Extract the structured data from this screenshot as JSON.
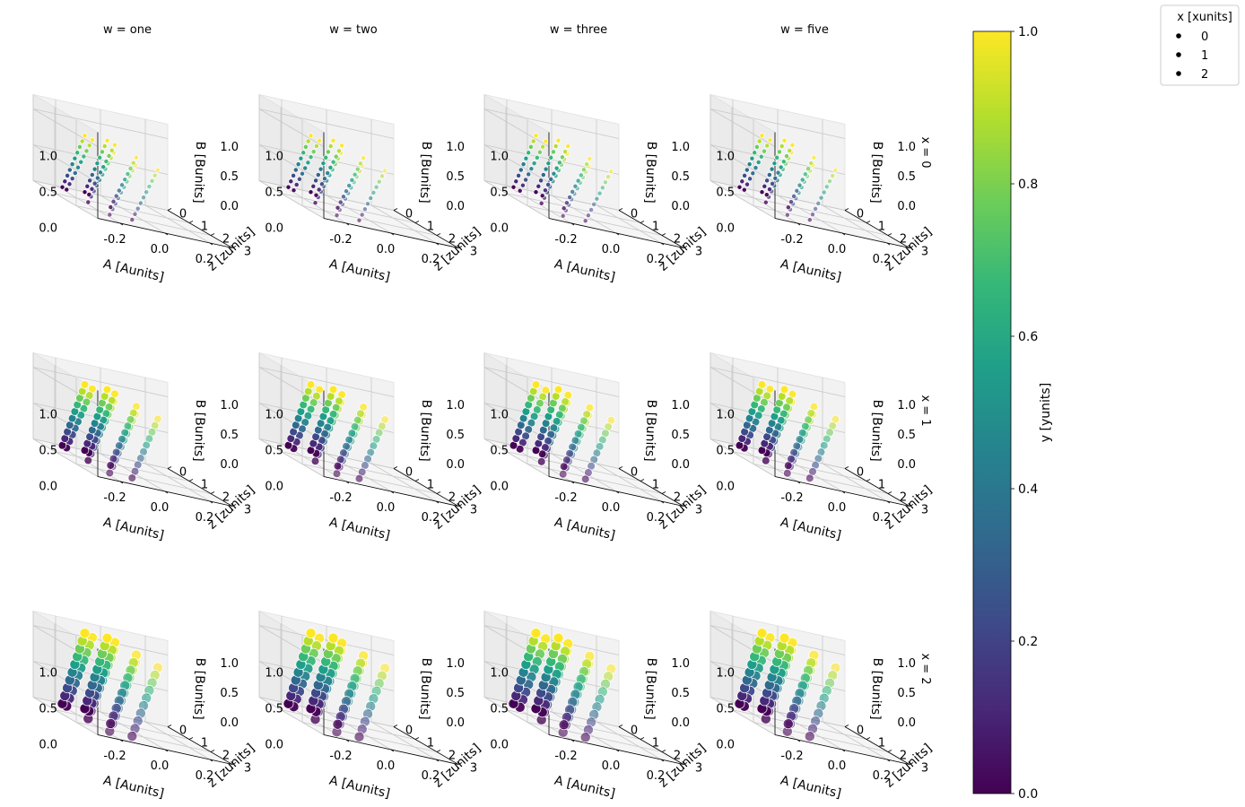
{
  "chart_data": {
    "type": "scatter",
    "projection": "3d",
    "facet_columns": {
      "variable": "w",
      "labels": [
        "w = one",
        "w = two",
        "w = three",
        "w = five"
      ]
    },
    "facet_rows": {
      "variable": "x",
      "labels": [
        "x = 0",
        "x = 1",
        "x = 2"
      ]
    },
    "axes": {
      "A": {
        "label": "A [Aunits]",
        "ticks": [
          "-0.2",
          "0.0",
          "0.2"
        ],
        "range": [
          -0.3,
          0.3
        ]
      },
      "z": {
        "label": "z [zunits]",
        "ticks": [
          "0",
          "1",
          "2",
          "3"
        ],
        "range": [
          0,
          3
        ]
      },
      "B": {
        "label": "B [Bunits]",
        "ticks": [
          "0.0",
          "0.5",
          "1.0"
        ],
        "range": [
          0,
          1.2
        ]
      }
    },
    "grid": true,
    "colorbar": {
      "label": "y [yunits]",
      "colormap": "viridis",
      "range": [
        0,
        1
      ],
      "ticks": [
        "0.0",
        "0.2",
        "0.4",
        "0.6",
        "0.8",
        "1.0"
      ]
    },
    "size_legend": {
      "title": "x [xunits]",
      "entries": [
        "0",
        "1",
        "2"
      ],
      "placement": "top-right"
    },
    "series_note_colors": [
      "#440154",
      "#3b528b",
      "#21918c",
      "#5ec962",
      "#fde725"
    ],
    "point_grid": {
      "A_values": [
        -0.05,
        0.05
      ],
      "z_values": [
        0,
        1,
        2,
        3
      ],
      "y_steps": 10
    }
  }
}
